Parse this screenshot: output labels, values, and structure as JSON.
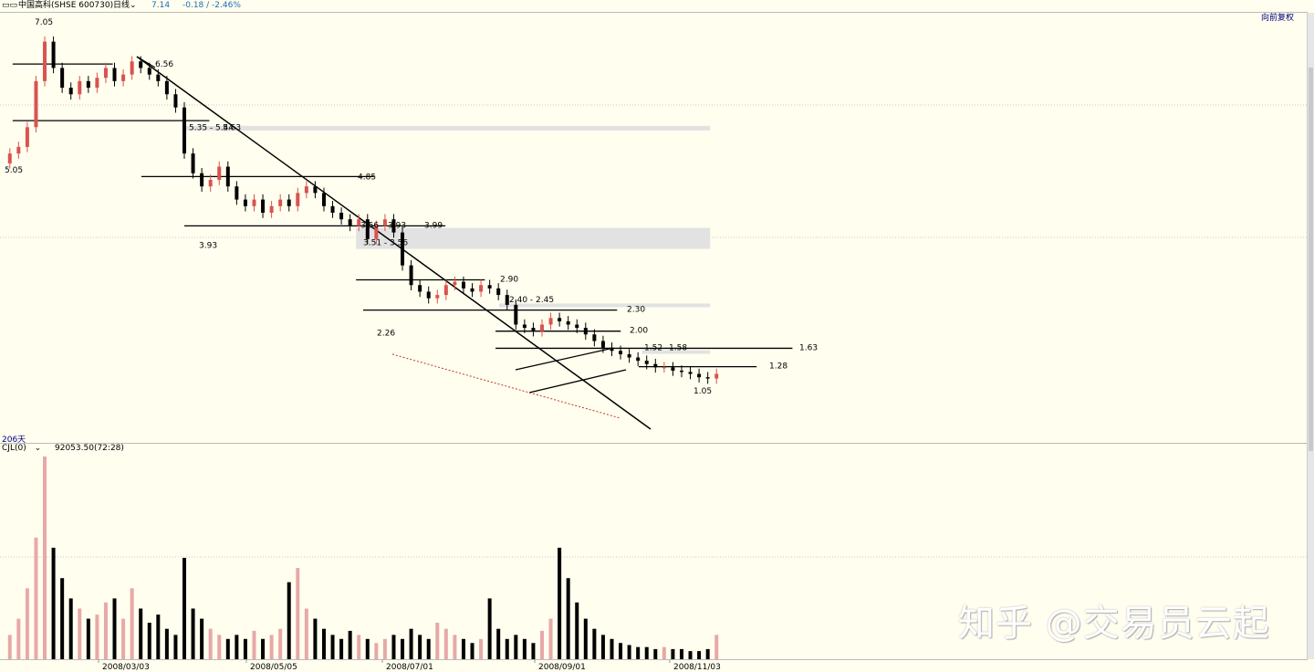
{
  "header": {
    "icon": "chart-mode-icon",
    "stock": "中国高科(SHSE 600730)",
    "period": "日线",
    "price": "7.14",
    "change": "-0.18 / -2.46%",
    "adjust": "向前复权"
  },
  "indicator": {
    "days": "206天",
    "name": "CJL(0)",
    "value": "92053.50(72:28)"
  },
  "watermark": "知乎 @交易员云起",
  "colors": {
    "up": "#D9534F",
    "down": "#000000",
    "volup": "#E8A8A8",
    "zone": "#E2E2E2",
    "trend": "#000000",
    "support": "#C0392B"
  },
  "chart_data": {
    "type": "candlestick",
    "title": "中国高科(SHSE 600730) 日线",
    "ylim": [
      0.9,
      7.2
    ],
    "x_ticks": [
      "2008/03/03",
      "2008/05/05",
      "2008/07/01",
      "2008/09/01",
      "2008/11/03"
    ],
    "price_labels": [
      {
        "text": "7.05",
        "price": 7.05
      },
      {
        "text": "5.05",
        "price": 5.05
      },
      {
        "text": "6.56",
        "price": 6.56
      },
      {
        "text": "5.35 - 5.44",
        "price": 5.6
      },
      {
        "text": "5.63",
        "price": 5.6
      },
      {
        "text": "4.85",
        "price": 4.85
      },
      {
        "text": "3.93",
        "price": 3.93
      },
      {
        "text": "3.56",
        "price": 4.1
      },
      {
        "text": "3.93",
        "price": 4.1
      },
      {
        "text": "3.99",
        "price": 4.1
      },
      {
        "text": "3.51 - 3.56",
        "price": 3.78
      },
      {
        "text": "2.90",
        "price": 3.28
      },
      {
        "text": "2.40 - 2.45",
        "price": 2.97
      },
      {
        "text": "2.26",
        "price": 2.6
      },
      {
        "text": "2.30",
        "price": 2.82
      },
      {
        "text": "2.00",
        "price": 2.5
      },
      {
        "text": "1.52",
        "price": 2.24
      },
      {
        "text": "1.58",
        "price": 2.24
      },
      {
        "text": "1.63",
        "price": 2.24
      },
      {
        "text": "1.28",
        "price": 1.96
      },
      {
        "text": "1.05",
        "price": 1.72
      }
    ],
    "horizontal_lines": [
      {
        "price": 6.56,
        "from": 0.02,
        "to": 0.3
      },
      {
        "price": 5.7,
        "from": 0.02,
        "to": 0.57
      },
      {
        "price": 4.85,
        "from": 0.38,
        "to": 1.03
      },
      {
        "price": 4.1,
        "from": 0.5,
        "to": 1.23
      },
      {
        "price": 3.28,
        "from": 0.98,
        "to": 1.34
      },
      {
        "price": 2.82,
        "from": 1.0,
        "to": 1.71
      },
      {
        "price": 2.5,
        "from": 1.37,
        "to": 1.72
      },
      {
        "price": 2.24,
        "from": 1.37,
        "to": 2.2
      },
      {
        "price": 1.96,
        "from": 1.77,
        "to": 2.1
      }
    ],
    "zones": [
      {
        "low": 5.55,
        "high": 5.62,
        "from": 0.5,
        "to": 1.97
      },
      {
        "low": 3.75,
        "high": 4.07,
        "from": 0.98,
        "to": 1.97
      },
      {
        "low": 2.88,
        "high": 2.92,
        "from": 1.38,
        "to": 1.97
      },
      {
        "low": 2.17,
        "high": 2.21,
        "from": 1.78,
        "to": 1.97
      }
    ],
    "series": [
      {
        "name": "open",
        "values": [
          5.05,
          5.2,
          5.3,
          5.6,
          6.3,
          6.9,
          6.5,
          6.2,
          6.1,
          6.3,
          6.2,
          6.35,
          6.5,
          6.3,
          6.4,
          6.6,
          6.5,
          6.4,
          6.3,
          6.1,
          5.9,
          5.2,
          4.9,
          4.7,
          4.8,
          5.0,
          4.7,
          4.5,
          4.4,
          4.5,
          4.3,
          4.4,
          4.5,
          4.4,
          4.6,
          4.7,
          4.6,
          4.4,
          4.3,
          4.2,
          4.1,
          4.2,
          3.9,
          4.1,
          4.2,
          4.0,
          3.5,
          3.2,
          3.1,
          3.0,
          3.05,
          3.2,
          3.25,
          3.15,
          3.1,
          3.2,
          3.15,
          3.05,
          2.9,
          2.6,
          2.55,
          2.5,
          2.6,
          2.7,
          2.65,
          2.6,
          2.55,
          2.45,
          2.35,
          2.25,
          2.2,
          2.15,
          2.1,
          2.05,
          2.0,
          1.95,
          1.95,
          1.9,
          1.88,
          1.85,
          1.8,
          1.78
        ]
      },
      {
        "name": "close",
        "values": [
          5.2,
          5.3,
          5.6,
          6.3,
          6.9,
          6.5,
          6.2,
          6.1,
          6.3,
          6.2,
          6.35,
          6.5,
          6.3,
          6.4,
          6.6,
          6.5,
          6.4,
          6.3,
          6.1,
          5.9,
          5.2,
          4.9,
          4.7,
          4.8,
          5.0,
          4.7,
          4.5,
          4.4,
          4.5,
          4.3,
          4.4,
          4.5,
          4.4,
          4.6,
          4.7,
          4.6,
          4.4,
          4.3,
          4.2,
          4.1,
          4.2,
          3.9,
          4.1,
          4.2,
          4.0,
          3.5,
          3.2,
          3.1,
          3.0,
          3.05,
          3.2,
          3.25,
          3.15,
          3.1,
          3.2,
          3.15,
          3.05,
          2.9,
          2.6,
          2.55,
          2.5,
          2.6,
          2.7,
          2.65,
          2.6,
          2.55,
          2.45,
          2.35,
          2.25,
          2.2,
          2.15,
          2.1,
          2.05,
          2.0,
          1.95,
          1.95,
          1.9,
          1.88,
          1.85,
          1.8,
          1.78,
          1.85
        ]
      },
      {
        "name": "volume",
        "values": [
          0.12,
          0.2,
          0.35,
          0.6,
          1.0,
          0.55,
          0.4,
          0.3,
          0.25,
          0.2,
          0.22,
          0.28,
          0.3,
          0.2,
          0.35,
          0.25,
          0.18,
          0.22,
          0.15,
          0.12,
          0.5,
          0.25,
          0.2,
          0.15,
          0.12,
          0.1,
          0.12,
          0.1,
          0.14,
          0.1,
          0.12,
          0.15,
          0.38,
          0.45,
          0.25,
          0.2,
          0.15,
          0.12,
          0.1,
          0.14,
          0.12,
          0.1,
          0.08,
          0.1,
          0.12,
          0.1,
          0.15,
          0.12,
          0.1,
          0.18,
          0.15,
          0.12,
          0.1,
          0.08,
          0.1,
          0.3,
          0.15,
          0.1,
          0.12,
          0.1,
          0.08,
          0.14,
          0.2,
          0.55,
          0.4,
          0.28,
          0.2,
          0.15,
          0.12,
          0.1,
          0.08,
          0.07,
          0.06,
          0.06,
          0.05,
          0.06,
          0.05,
          0.05,
          0.04,
          0.04,
          0.05,
          0.12
        ]
      }
    ],
    "volume_unit": "CJL"
  }
}
